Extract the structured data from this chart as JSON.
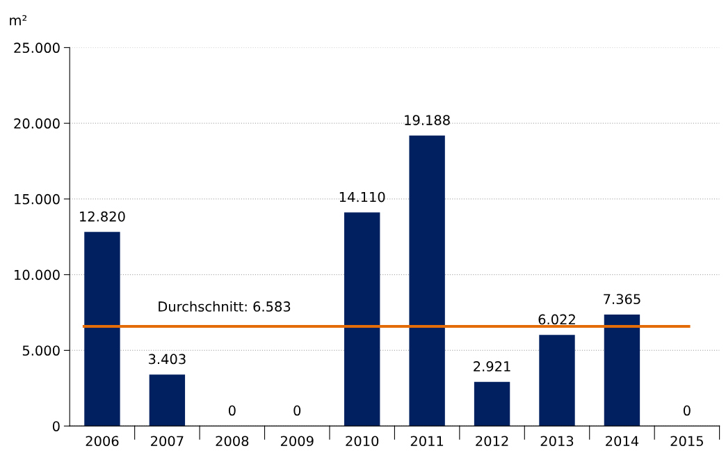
{
  "chart_data": {
    "type": "bar",
    "ylabel": "m²",
    "categories": [
      "2006",
      "2007",
      "2008",
      "2009",
      "2010",
      "2011",
      "2012",
      "2013",
      "2014",
      "2015"
    ],
    "values": [
      12820,
      3403,
      0,
      0,
      14110,
      19188,
      2921,
      6022,
      7365,
      0
    ],
    "value_labels": [
      "12.820",
      "3.403",
      "0",
      "0",
      "14.110",
      "19.188",
      "2.921",
      "6.022",
      "7.365",
      "0"
    ],
    "color": "#002060",
    "ylim": [
      0,
      25000
    ],
    "yticks": [
      {
        "value": 0,
        "label": "0"
      },
      {
        "value": 5000,
        "label": "5.000"
      },
      {
        "value": 10000,
        "label": "10.000"
      },
      {
        "value": 15000,
        "label": "15.000"
      },
      {
        "value": 20000,
        "label": "20.000"
      },
      {
        "value": 25000,
        "label": "25.000"
      }
    ],
    "grid": "y",
    "ref_lines": [
      {
        "axis": "y",
        "value": 6583,
        "label": "Durchschnitt: 6.583",
        "color": "#e36c09"
      }
    ]
  }
}
